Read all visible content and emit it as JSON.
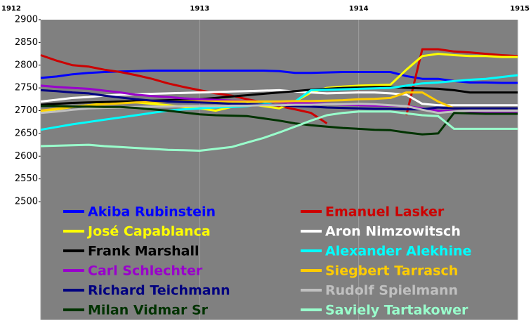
{
  "chart_data": {
    "type": "line",
    "x": [
      1912,
      1912.1,
      1912.2,
      1912.3,
      1912.4,
      1912.5,
      1912.6,
      1912.7,
      1912.8,
      1912.9,
      1913,
      1913.1,
      1913.2,
      1913.3,
      1913.4,
      1913.5,
      1913.6,
      1913.7,
      1913.8,
      1913.9,
      1914,
      1914.1,
      1914.2,
      1914.3,
      1914.4,
      1914.5,
      1914.6,
      1914.7,
      1914.8,
      1914.9,
      1915
    ],
    "xlim": [
      1912,
      1915
    ],
    "xticks": [
      1912,
      1913,
      1914,
      1915
    ],
    "ylim": [
      2500,
      2900
    ],
    "yticks": [
      2500,
      2550,
      2600,
      2650,
      2700,
      2750,
      2800,
      2850,
      2900
    ],
    "grid": "x",
    "series": [
      {
        "name": "Akiba Rubinstein",
        "color": "#0000ff",
        "values": [
          2772,
          2775,
          2780,
          2783,
          2785,
          2786,
          2787,
          2788,
          2788,
          2788,
          2788,
          2788,
          2788,
          2788,
          2788,
          2787,
          2783,
          2783,
          2784,
          2785,
          2785,
          2785,
          2785,
          2776,
          2770,
          2770,
          2765,
          2762,
          2762,
          2761,
          2761
        ]
      },
      {
        "name": "Emanuel Lasker",
        "color": "#cc0000",
        "values": [
          2822,
          2810,
          2800,
          2797,
          2790,
          2785,
          2778,
          2770,
          2760,
          2752,
          2745,
          2738,
          2733,
          2725,
          2718,
          2710,
          2703,
          2695,
          2672,
          null,
          null,
          null,
          null,
          2690,
          2835,
          2835,
          2830,
          2828,
          2825,
          2822,
          2820
        ]
      },
      {
        "name": "José Capablanca",
        "color": "#ffff00",
        "values": [
          2698,
          2703,
          2708,
          2712,
          2716,
          2720,
          2718,
          2715,
          2712,
          2708,
          2705,
          2700,
          2708,
          2715,
          2710,
          2705,
          2720,
          2740,
          2750,
          2753,
          2755,
          2756,
          2757,
          2790,
          2820,
          2825,
          2822,
          2820,
          2820,
          2818,
          2818
        ]
      },
      {
        "name": "Aron Nimzowitsch",
        "color": "#ffffff",
        "values": [
          2720,
          2724,
          2728,
          2730,
          2733,
          2735,
          2736,
          2737,
          2738,
          2739,
          2740,
          2741,
          2742,
          2743,
          2744,
          2745,
          2742,
          2740,
          2738,
          2739,
          2740,
          2740,
          2738,
          2735,
          2715,
          2712,
          2712,
          2712,
          2712,
          2712,
          2712
        ]
      },
      {
        "name": "Frank Marshall",
        "color": "#000000",
        "values": [
          2713,
          2715,
          2717,
          2718,
          2719,
          2720,
          2721,
          2722,
          2723,
          2724,
          2725,
          2728,
          2731,
          2734,
          2737,
          2740,
          2743,
          2746,
          2748,
          2750,
          2751,
          2752,
          2752,
          2750,
          2749,
          2748,
          2745,
          2740,
          2740,
          2740,
          2740
        ]
      },
      {
        "name": "Alexander Alekhine",
        "color": "#00ffff",
        "values": [
          2658,
          2664,
          2670,
          2675,
          2680,
          2685,
          2690,
          2695,
          2700,
          2703,
          2705,
          2707,
          2708,
          2710,
          2715,
          2720,
          2720,
          2745,
          2746,
          2747,
          2748,
          2749,
          2750,
          2755,
          2760,
          2762,
          2765,
          2768,
          2770,
          2774,
          2778
        ]
      },
      {
        "name": "Carl Schlechter",
        "color": "#9900cc",
        "values": [
          2755,
          2752,
          2750,
          2748,
          2744,
          2740,
          2735,
          2732,
          2730,
          2727,
          2725,
          2724,
          2722,
          2721,
          2720,
          2718,
          2717,
          2716,
          2715,
          2713,
          2712,
          2711,
          2711,
          2710,
          2705,
          2700,
          2699,
          2698,
          2698,
          2698,
          2698
        ]
      },
      {
        "name": "Siegbert Tarrasch",
        "color": "#ffcc00",
        "values": [
          2700,
          2704,
          2708,
          2712,
          2714,
          2716,
          2718,
          2719,
          2720,
          2720,
          2720,
          2720,
          2720,
          2720,
          2720,
          2720,
          2721,
          2721,
          2722,
          2723,
          2725,
          2726,
          2728,
          2740,
          2740,
          2720,
          2705,
          2705,
          2705,
          2705,
          2705
        ]
      },
      {
        "name": "Richard Teichmann",
        "color": "#000080",
        "values": [
          2745,
          2743,
          2740,
          2738,
          2733,
          2729,
          2725,
          2722,
          2720,
          2719,
          2718,
          2717,
          2715,
          2714,
          2713,
          2712,
          2710,
          2709,
          2707,
          2706,
          2705,
          2704,
          2704,
          2703,
          2703,
          2707,
          2705,
          2705,
          2705,
          2705,
          2705
        ]
      },
      {
        "name": "Rudolf Spielmann",
        "color": "#c0c0c0",
        "values": [
          2695,
          2698,
          2702,
          2705,
          2706,
          2707,
          2708,
          2709,
          2709,
          2710,
          2710,
          2710,
          2711,
          2711,
          2712,
          2712,
          2713,
          2713,
          2714,
          2714,
          2715,
          2714,
          2712,
          2710,
          2702,
          2695,
          2698,
          2700,
          2700,
          2700,
          2700
        ]
      },
      {
        "name": "Milan Vidmar Sr",
        "color": "#003300",
        "values": [
          2710,
          2710,
          2709,
          2709,
          2708,
          2708,
          2706,
          2703,
          2700,
          2696,
          2692,
          2690,
          2689,
          2688,
          2683,
          2678,
          2672,
          2668,
          2665,
          2662,
          2660,
          2658,
          2657,
          2652,
          2648,
          2650,
          2695,
          2694,
          2693,
          2693,
          2693
        ]
      },
      {
        "name": "Saviely Tartakower",
        "color": "#99ffcc",
        "values": [
          2622,
          2623,
          2624,
          2625,
          2622,
          2620,
          2618,
          2616,
          2614,
          2613,
          2612,
          2616,
          2620,
          2630,
          2640,
          2652,
          2665,
          2678,
          2690,
          2695,
          2698,
          2698,
          2698,
          2694,
          2690,
          2688,
          2660,
          2660,
          2660,
          2660,
          2660
        ]
      }
    ]
  }
}
